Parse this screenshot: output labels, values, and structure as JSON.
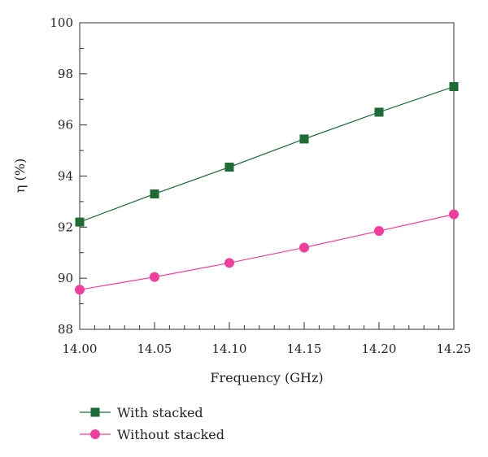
{
  "chart_data": {
    "type": "line",
    "title": "",
    "xlabel": "Frequency (GHz)",
    "ylabel": "η (%)",
    "xlim": [
      14.0,
      14.25
    ],
    "ylim": [
      88,
      100
    ],
    "x": [
      14.0,
      14.05,
      14.1,
      14.15,
      14.2,
      14.25
    ],
    "x_tick_labels": [
      "14.00",
      "14.05",
      "14.10",
      "14.15",
      "14.20",
      "14.25"
    ],
    "y_ticks": [
      88,
      90,
      92,
      94,
      96,
      98,
      100
    ],
    "y_tick_labels": [
      "88",
      "90",
      "92",
      "94",
      "96",
      "98",
      "100"
    ],
    "grid": false,
    "legend_position": "bottom-left",
    "series": [
      {
        "name": "With stacked",
        "values": [
          92.2,
          93.3,
          94.35,
          95.45,
          96.5,
          97.5
        ],
        "color": "#1e6b35",
        "marker": "square"
      },
      {
        "name": "Without stacked",
        "values": [
          89.55,
          90.05,
          90.6,
          91.2,
          91.85,
          92.5
        ],
        "color": "#f03e9c",
        "marker": "circle"
      }
    ]
  }
}
